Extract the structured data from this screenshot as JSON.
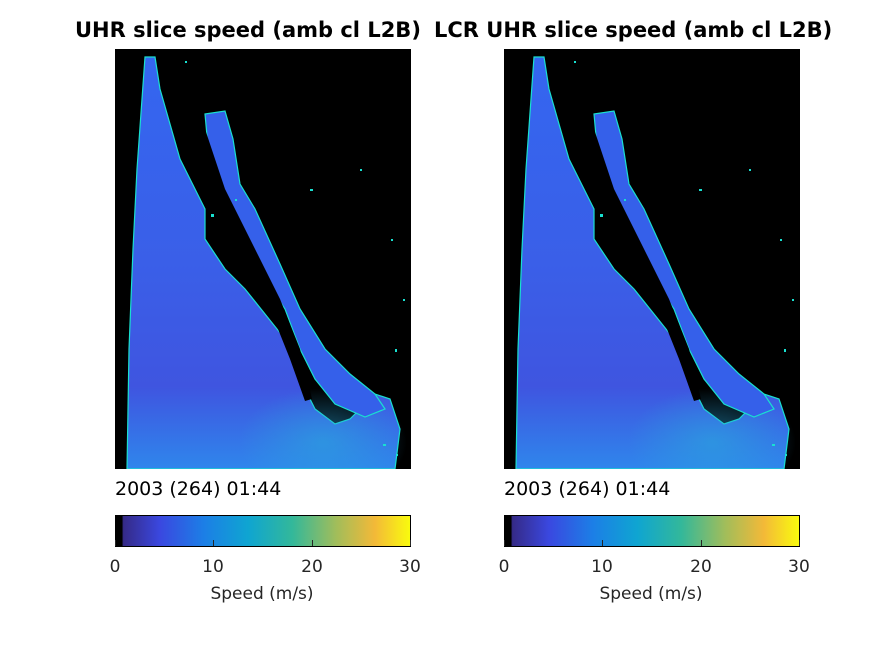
{
  "panels": [
    {
      "title": "UHR slice speed (amb cl L2B)",
      "timestamp": "2003 (264) 01:44"
    },
    {
      "title": "LCR UHR slice speed (amb cl L2B)",
      "timestamp": "2003 (264) 01:44"
    }
  ],
  "colorbar": {
    "label": "Speed (m/s)",
    "ticks": [
      "0",
      "10",
      "20",
      "30"
    ],
    "range": [
      0,
      30
    ],
    "colormap": "parula"
  },
  "colors": {
    "background_land": "#000000",
    "ocean_low": "#3d4ae0",
    "ocean_mid": "#2f7bef",
    "coastline": "#19e0d0"
  },
  "chart_data": [
    {
      "type": "heatmap",
      "title": "UHR slice speed (amb cl L2B)",
      "colorbar_label": "Speed (m/s)",
      "clim": [
        0,
        30
      ],
      "approx_speed_range": [
        4,
        10
      ],
      "timestamp": "2003 (264) 01:44"
    },
    {
      "type": "heatmap",
      "title": "LCR UHR slice speed (amb cl L2B)",
      "colorbar_label": "Speed (m/s)",
      "clim": [
        0,
        30
      ],
      "approx_speed_range": [
        4,
        10
      ],
      "timestamp": "2003 (264) 01:44"
    }
  ]
}
